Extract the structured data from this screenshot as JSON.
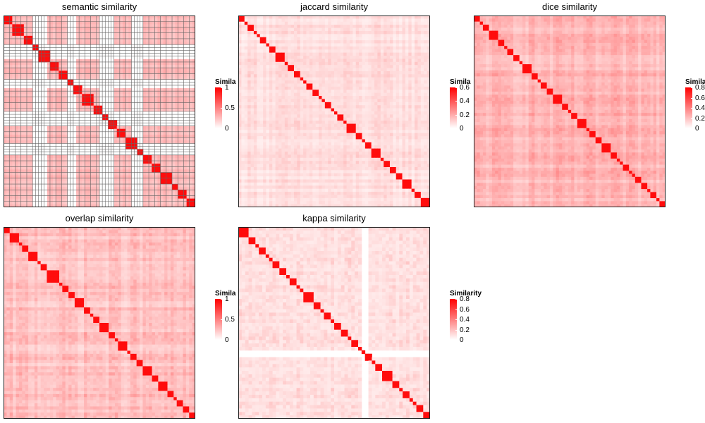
{
  "chart_data": [
    {
      "type": "heatmap",
      "title": "semantic similarity",
      "legend": {
        "title": "Similarity",
        "ticks": [
          "0",
          "0.5",
          "1"
        ],
        "max": 1
      },
      "grid": true,
      "colors": {
        "low": "#ffffff",
        "high": "#ff0000"
      }
    },
    {
      "type": "heatmap",
      "title": "jaccard similarity",
      "legend": {
        "title": "Similarity",
        "ticks": [
          "0",
          "0.2",
          "0.4",
          "0.6"
        ],
        "max": 0.6
      },
      "grid": false,
      "colors": {
        "low": "#ffffff",
        "high": "#ff0000"
      }
    },
    {
      "type": "heatmap",
      "title": "dice similarity",
      "legend": {
        "title": "Similarity",
        "ticks": [
          "0",
          "0.2",
          "0.4",
          "0.6",
          "0.8"
        ],
        "max": 0.8
      },
      "grid": false,
      "colors": {
        "low": "#ffffff",
        "high": "#ff0000"
      }
    },
    {
      "type": "heatmap",
      "title": "overlap similarity",
      "legend": {
        "title": "Similarity",
        "ticks": [
          "0",
          "0.5",
          "1"
        ],
        "max": 1
      },
      "grid": false,
      "colors": {
        "low": "#ffffff",
        "high": "#ff0000"
      }
    },
    {
      "type": "heatmap",
      "title": "kappa similarity",
      "legend": {
        "title": "Similarity",
        "ticks": [
          "0",
          "0.2",
          "0.4",
          "0.6",
          "0.8"
        ],
        "max": 0.8
      },
      "grid": false,
      "colors": {
        "low": "#ffffff",
        "high": "#ff0000"
      }
    }
  ]
}
